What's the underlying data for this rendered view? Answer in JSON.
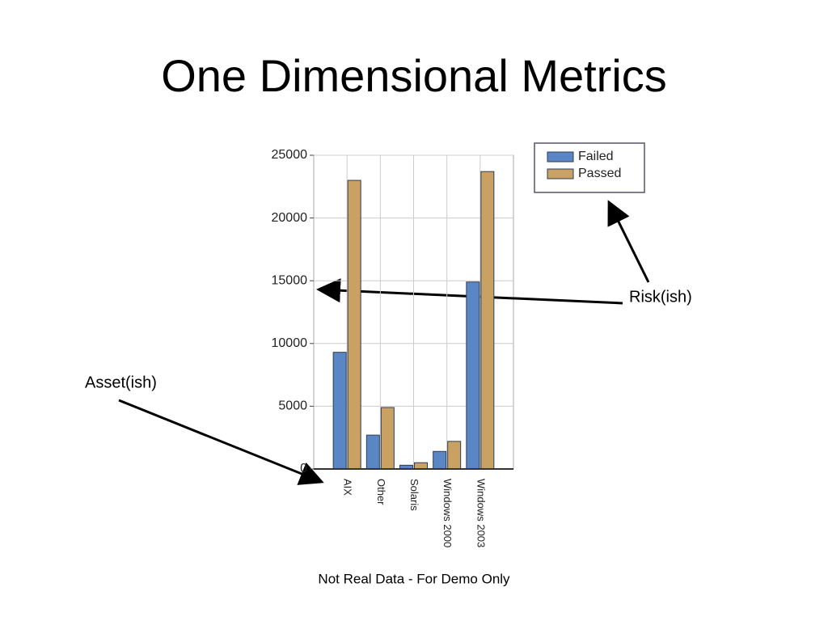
{
  "chart_data": {
    "type": "bar",
    "title": "One Dimensional Metrics",
    "categories": [
      "AIX",
      "Other",
      "Solaris",
      "Windows 2000",
      "Windows 2003"
    ],
    "series": [
      {
        "name": "Failed",
        "color": "#5a86c6",
        "values": [
          9300,
          2700,
          300,
          1400,
          14900
        ]
      },
      {
        "name": "Passed",
        "color": "#c9a263",
        "values": [
          23000,
          4900,
          500,
          2200,
          23700
        ]
      }
    ],
    "ylim": [
      0,
      25000
    ],
    "yticks": [
      0,
      5000,
      10000,
      15000,
      20000,
      25000
    ],
    "grid": true,
    "legend": "upper-right",
    "annotations": [
      "Risk(ish)",
      "Asset(ish)"
    ],
    "footnote": "Not Real Data - For Demo Only"
  }
}
